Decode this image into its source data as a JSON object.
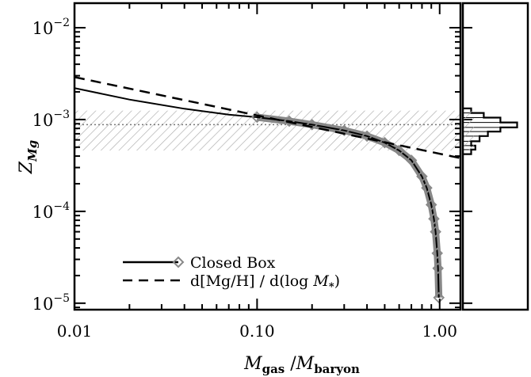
{
  "chart_data": {
    "type": "line",
    "x_scale": "log",
    "y_scale": "log",
    "xlim": [
      0.01,
      1.3
    ],
    "ylim": [
      8.5e-06,
      0.0185
    ],
    "xlabel_main": "M",
    "xlabel_sub_num": "gas",
    "xlabel_slash": " /",
    "xlabel_sub_den": "baryon",
    "ylabel_main": "Z",
    "ylabel_sub": "Mg",
    "x_ticks": [
      {
        "value": 0.01,
        "label": "0.01"
      },
      {
        "value": 0.1,
        "label": "0.10"
      },
      {
        "value": 1.0,
        "label": "1.00"
      }
    ],
    "y_ticks": [
      {
        "value": 1e-05,
        "base": "10",
        "exp": "−5"
      },
      {
        "value": 0.0001,
        "base": "10",
        "exp": "−4"
      },
      {
        "value": 0.001,
        "base": "10",
        "exp": "−3"
      },
      {
        "value": 0.01,
        "base": "10",
        "exp": "−2"
      }
    ],
    "observed_band": {
      "y_low": 0.00046,
      "y_high": 0.00125,
      "y_mid": 0.00088,
      "color": "#aaaaaa"
    },
    "series": [
      {
        "name": "Closed Box",
        "style": "solid with diamond markers",
        "color": "#000000",
        "marker_color": "#888888",
        "x": [
          0.01,
          0.02,
          0.04,
          0.07,
          0.1,
          0.15,
          0.2,
          0.3,
          0.4,
          0.5,
          0.6,
          0.7,
          0.8,
          0.85,
          0.9,
          0.93,
          0.95,
          0.97,
          0.98,
          0.99
        ],
        "y": [
          0.0022,
          0.00165,
          0.00131,
          0.00113,
          0.00106,
          0.00096,
          0.00088,
          0.00076,
          0.00066,
          0.00056,
          0.00046,
          0.00036,
          0.00024,
          0.00018,
          0.000118,
          8.3e-05,
          6e-05,
          3.5e-05,
          2.4e-05,
          1.15e-05
        ]
      },
      {
        "name": "d[Mg/H] / d(log M*)",
        "style": "dashed",
        "color": "#000000",
        "x": [
          0.01,
          1.3
        ],
        "y": [
          0.0029,
          0.00038
        ]
      }
    ],
    "legend": {
      "placement": "bottom-left",
      "entries": [
        {
          "label": "Closed Box"
        },
        {
          "label_prefix": "d[Mg/H] / d(log ",
          "label_italic": "M",
          "label_sub": "*",
          "label_suffix": ")"
        }
      ]
    },
    "side_histogram": {
      "orientation": "horizontal",
      "bins": [
        {
          "y_low": 0.00042,
          "y_high": 0.00047,
          "count": 2
        },
        {
          "y_low": 0.00047,
          "y_high": 0.00052,
          "count": 3
        },
        {
          "y_low": 0.00052,
          "y_high": 0.00058,
          "count": 2
        },
        {
          "y_low": 0.00058,
          "y_high": 0.00066,
          "count": 4
        },
        {
          "y_low": 0.00066,
          "y_high": 0.00074,
          "count": 6
        },
        {
          "y_low": 0.00074,
          "y_high": 0.00082,
          "count": 9
        },
        {
          "y_low": 0.00082,
          "y_high": 0.00093,
          "count": 13
        },
        {
          "y_low": 0.00093,
          "y_high": 0.00105,
          "count": 9
        },
        {
          "y_low": 0.00105,
          "y_high": 0.00118,
          "count": 5
        },
        {
          "y_low": 0.00118,
          "y_high": 0.00132,
          "count": 2
        }
      ],
      "count_max": 14
    }
  }
}
